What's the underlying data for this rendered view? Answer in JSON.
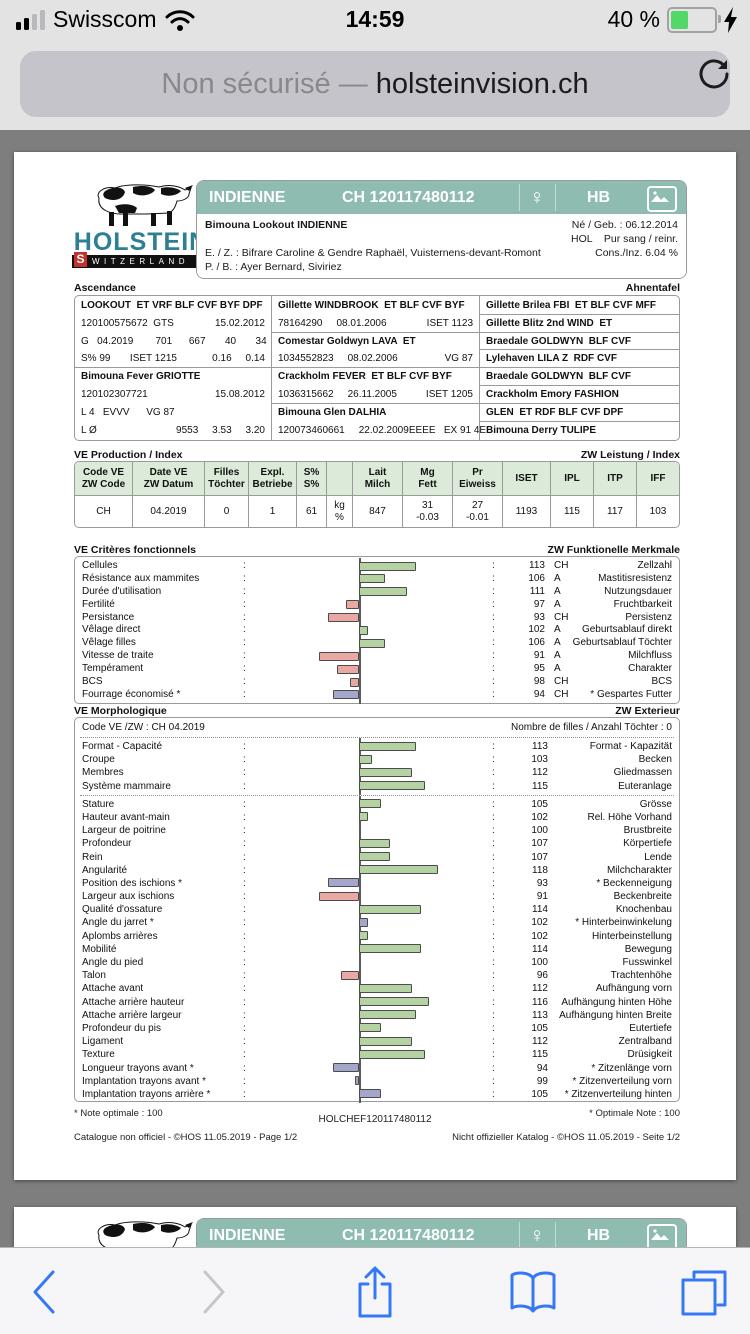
{
  "misc": {
    "colon": ":"
  },
  "status_bar": {
    "carrier": "Swisscom",
    "time": "14:59",
    "battery_percent": "40 %"
  },
  "url_bar": {
    "security_label": "Non sécurisé ",
    "separator": "— ",
    "domain": "holsteinvision.ch"
  },
  "toolbar": {
    "icons": [
      "back",
      "forward",
      "share",
      "bookmarks",
      "tabs"
    ]
  },
  "colors": {
    "teal_header": "#8fbcb0",
    "table_header_green": "#dcebd9",
    "bar_positive": "#b5d3a2",
    "bar_negative": "#e9a8a1",
    "bar_special": "#a4a6cb",
    "ios_blue": "#3478f6",
    "battery_green": "#53d769"
  },
  "document": {
    "logo": {
      "brand": "HOLSTEIN",
      "country_s": "S",
      "country_rest": "WITZERLAND"
    },
    "header": {
      "name": "INDIENNE",
      "id": "CH 120117480112",
      "sex_symbol": "♀",
      "herdbook": "HB"
    },
    "identity": {
      "full_name": "Bimouna Lookout INDIENNE",
      "born": "Né / Geb. : 06.12.2014",
      "breed": "HOL    Pur sang / reinr.",
      "breeder": "E. / Z. : Bifrare Caroline & Gendre Raphaël, Vuisternens-devant-Romont",
      "inbreeding": "Cons./Inz. 6.04 %",
      "owner": "P. / B. : Ayer Bernard, Siviriez"
    },
    "ascendance": {
      "title_fr": "Ascendance",
      "title_de": "Ahnentafel",
      "col1": [
        {
          "b": 1,
          "l": "LOOKOUT  ET VRF BLF CVF BYF DPF"
        },
        {
          "l": "120100575672  GTS",
          "r": "15.02.2012"
        },
        {
          "l": "G   04.2019        701      667       40       34"
        },
        {
          "l": "S% 99       ISET 1215",
          "r": "0.16     0.14"
        },
        {
          "b": 1,
          "l": "Bimouna Fever GRIOTTE"
        },
        {
          "l": "120102307721",
          "r": "15.08.2012"
        },
        {
          "l": "L 4   EVVV      VG 87"
        },
        {
          "l": "L Ø",
          "r": "9553     3.53     3.20"
        }
      ],
      "col2": [
        {
          "b": 1,
          "l": "Gillette WINDBROOK  ET BLF CVF BYF"
        },
        {
          "l": "78164290",
          "m": "08.01.2006",
          "r": "ISET 1123"
        },
        {
          "b": 1,
          "l": "Comestar Goldwyn LAVA  ET"
        },
        {
          "l": "1034552823",
          "m": "08.02.2006",
          "r": "VG 87"
        },
        {
          "b": 1,
          "l": "Crackholm FEVER  ET BLF CVF BYF"
        },
        {
          "l": "1036315662",
          "m": "26.11.2005",
          "r": "ISET 1205"
        },
        {
          "b": 1,
          "l": "Bimouna Glen DALHIA"
        },
        {
          "l": "120073460661",
          "m": "22.02.2009",
          "r": "EEEE   EX 91 4E"
        }
      ],
      "col3": [
        {
          "b": 1,
          "l": "Gillette Brilea FBI  ET BLF CVF MFF"
        },
        {
          "b": 1,
          "l": "Gillette Blitz 2nd WIND  ET"
        },
        {
          "b": 1,
          "l": "Braedale GOLDWYN  BLF CVF"
        },
        {
          "b": 1,
          "l": "Lylehaven LILA Z  RDF CVF"
        },
        {
          "b": 1,
          "l": "Braedale GOLDWYN  BLF CVF"
        },
        {
          "b": 1,
          "l": "Crackholm Emory FASHION"
        },
        {
          "b": 1,
          "l": "GLEN  ET RDF BLF CVF DPF"
        },
        {
          "b": 1,
          "l": "Bimouna Derry TULIPE"
        }
      ]
    },
    "production": {
      "title_fr": "VE Production / Index",
      "title_de": "ZW Leistung / Index",
      "columns": [
        {
          "h1": "Code VE",
          "h2": "ZW Code",
          "v1": "CH"
        },
        {
          "h1": "Date VE",
          "h2": "ZW Datum",
          "v1": "04.2019"
        },
        {
          "h1": "Filles",
          "h2": "Töchter",
          "v1": "0"
        },
        {
          "h1": "Expl.",
          "h2": "Betriebe",
          "v1": "1"
        },
        {
          "h1": "S%",
          "h2": "S%",
          "v1": "61"
        },
        {
          "h1": "",
          "h2": "",
          "v1": "kg",
          "v2": "%"
        },
        {
          "h1": "Lait",
          "h2": "Milch",
          "v1": "847"
        },
        {
          "h1": "Mg",
          "h2": "Fett",
          "v1": "31",
          "v2": "-0.03"
        },
        {
          "h1": "Pr",
          "h2": "Eiweiss",
          "v1": "27",
          "v2": "-0.01"
        },
        {
          "h1": "ISET",
          "v1": "1193"
        },
        {
          "h1": "IPL",
          "v1": "115"
        },
        {
          "h1": "ITP",
          "v1": "117"
        },
        {
          "h1": "IFF",
          "v1": "103"
        }
      ]
    },
    "functional": {
      "title_fr": "VE Critères fonctionnels",
      "title_de": "ZW Funktionelle Merkmale",
      "rows": [
        {
          "fr": "Cellules",
          "v": 113,
          "base": "CH",
          "de": "Zellzahl",
          "c": "g"
        },
        {
          "fr": "Résistance aux mammites",
          "v": 106,
          "base": "A",
          "de": "Mastitisresistenz",
          "c": "g"
        },
        {
          "fr": "Durée d'utilisation",
          "v": 111,
          "base": "A",
          "de": "Nutzungsdauer",
          "c": "g"
        },
        {
          "fr": "Fertilité",
          "v": 97,
          "base": "A",
          "de": "Fruchtbarkeit",
          "c": "r"
        },
        {
          "fr": "Persistance",
          "v": 93,
          "base": "CH",
          "de": "Persistenz",
          "c": "r"
        },
        {
          "fr": "Vêlage direct",
          "v": 102,
          "base": "A",
          "de": "Geburtsablauf direkt",
          "c": "g"
        },
        {
          "fr": "Vêlage filles",
          "v": 106,
          "base": "A",
          "de": "Geburtsablauf Töchter",
          "c": "g"
        },
        {
          "fr": "Vitesse de traite",
          "v": 91,
          "base": "A",
          "de": "Milchfluss",
          "c": "r"
        },
        {
          "fr": "Tempérament",
          "v": 95,
          "base": "A",
          "de": "Charakter",
          "c": "r"
        },
        {
          "fr": "BCS",
          "v": 98,
          "base": "CH",
          "de": "BCS",
          "c": "r"
        },
        {
          "fr": "Fourrage économisé *",
          "v": 94,
          "base": "CH",
          "de": "* Gespartes Futter",
          "c": "b"
        }
      ]
    },
    "morphology": {
      "title_fr": "VE Morphologique",
      "title_de": "ZW Exterieur",
      "code_line": "Code VE /ZW : CH 04.2019",
      "daughters_line": "Nombre de filles / Anzahl Töchter : 0",
      "group1": [
        {
          "fr": "Format - Capacité",
          "v": 113,
          "de": "Format - Kapazität",
          "c": "g"
        },
        {
          "fr": "Croupe",
          "v": 103,
          "de": "Becken",
          "c": "g"
        },
        {
          "fr": "Membres",
          "v": 112,
          "de": "Gliedmassen",
          "c": "g"
        },
        {
          "fr": "Système mammaire",
          "v": 115,
          "de": "Euteranlage",
          "c": "g"
        }
      ],
      "group2": [
        {
          "fr": "Stature",
          "v": 105,
          "de": "Grösse",
          "c": "g"
        },
        {
          "fr": "Hauteur avant-main",
          "v": 102,
          "de": "Rel. Höhe Vorhand",
          "c": "g"
        },
        {
          "fr": "Largeur de poitrine",
          "v": 100,
          "de": "Brustbreite",
          "c": "n"
        },
        {
          "fr": "Profondeur",
          "v": 107,
          "de": "Körpertiefe",
          "c": "g"
        },
        {
          "fr": "Rein",
          "v": 107,
          "de": "Lende",
          "c": "g"
        },
        {
          "fr": "Angularité",
          "v": 118,
          "de": "Milchcharakter",
          "c": "g"
        },
        {
          "fr": "Position des ischions *",
          "v": 93,
          "de": "* Beckenneigung",
          "c": "b"
        },
        {
          "fr": "Largeur aux ischions",
          "v": 91,
          "de": "Beckenbreite",
          "c": "r"
        },
        {
          "fr": "Qualité d'ossature",
          "v": 114,
          "de": "Knochenbau",
          "c": "g"
        },
        {
          "fr": "Angle du jarret *",
          "v": 102,
          "de": "* Hinterbeinwinkelung",
          "c": "b"
        },
        {
          "fr": "Aplombs arrières",
          "v": 102,
          "de": "Hinterbeinstellung",
          "c": "g"
        },
        {
          "fr": "Mobilité",
          "v": 114,
          "de": "Bewegung",
          "c": "g"
        },
        {
          "fr": "Angle du pied",
          "v": 100,
          "de": "Fusswinkel",
          "c": "n"
        },
        {
          "fr": "Talon",
          "v": 96,
          "de": "Trachtenhöhe",
          "c": "r"
        },
        {
          "fr": "Attache avant",
          "v": 112,
          "de": "Aufhängung vorn",
          "c": "g"
        },
        {
          "fr": "Attache arrière hauteur",
          "v": 116,
          "de": "Aufhängung hinten Höhe",
          "c": "g"
        },
        {
          "fr": "Attache arrière largeur",
          "v": 113,
          "de": "Aufhängung hinten Breite",
          "c": "g"
        },
        {
          "fr": "Profondeur du pis",
          "v": 105,
          "de": "Eutertiefe",
          "c": "g"
        },
        {
          "fr": "Ligament",
          "v": 112,
          "de": "Zentralband",
          "c": "g"
        },
        {
          "fr": "Texture",
          "v": 115,
          "de": "Drüsigkeit",
          "c": "g"
        },
        {
          "fr": "Longueur trayons avant *",
          "v": 94,
          "de": "* Zitzenlänge vorn",
          "c": "b"
        },
        {
          "fr": "Implantation trayons avant *",
          "v": 99,
          "de": "* Zitzenverteilung vorn",
          "c": "b"
        },
        {
          "fr": "Implantation trayons arrière *",
          "v": 105,
          "de": "* Zitzenverteilung hinten",
          "c": "b"
        }
      ]
    },
    "footnotes": {
      "note_fr": "* Note optimale : 100",
      "doc_code": "HOLCHEF120117480112",
      "note_de": "* Optimale Note : 100",
      "catalog_fr": "Catalogue non officiel  -  ©HOS 11.05.2019  -  Page 1/2",
      "catalog_de": "Nicht offizieller Katalog  -  ©HOS 11.05.2019  -  Seite 1/2"
    }
  }
}
